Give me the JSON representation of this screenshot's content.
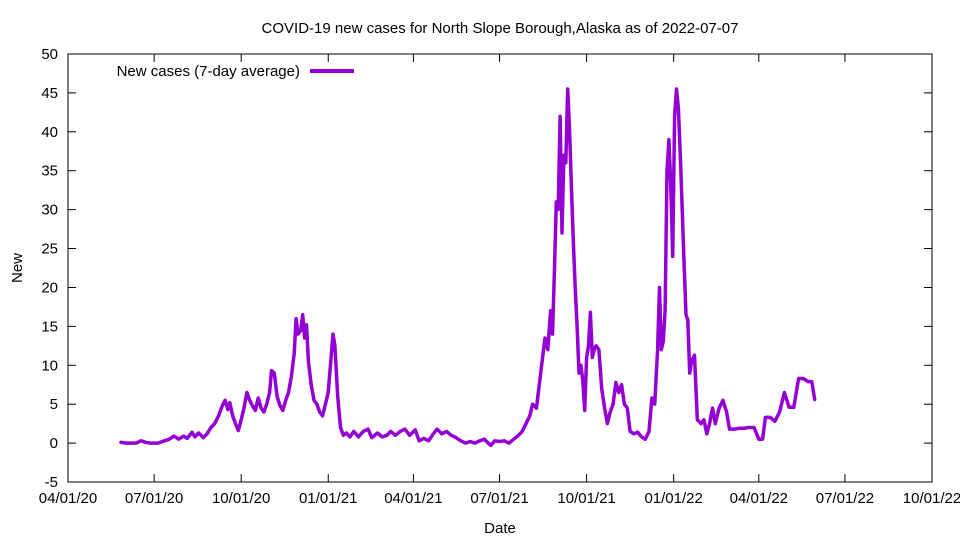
{
  "chart_data": {
    "type": "line",
    "title": "COVID-19 new cases for North Slope Borough,Alaska as of 2022-07-07",
    "xlabel": "Date",
    "ylabel": "New",
    "xlim": [
      "2020-04-01",
      "2022-10-01"
    ],
    "ylim": [
      -5,
      50
    ],
    "x_ticks": [
      "2020-04-01",
      "2020-07-01",
      "2020-10-01",
      "2021-01-01",
      "2021-04-01",
      "2021-07-01",
      "2021-10-01",
      "2022-01-01",
      "2022-04-01",
      "2022-07-01",
      "2022-10-01"
    ],
    "x_tick_labels": [
      "04/01/20",
      "07/01/20",
      "10/01/20",
      "01/01/21",
      "04/01/21",
      "07/01/21",
      "10/01/21",
      "01/01/22",
      "04/01/22",
      "07/01/22",
      "10/01/22"
    ],
    "y_ticks": [
      -5,
      0,
      5,
      10,
      15,
      20,
      25,
      30,
      35,
      40,
      45,
      50
    ],
    "grid": false,
    "legend_position": "top-left",
    "color": "#9400d3",
    "series": [
      {
        "name": "New cases (7-day average)",
        "points": [
          [
            "2020-05-27",
            0.1
          ],
          [
            "2020-06-02",
            0.0
          ],
          [
            "2020-06-12",
            0.0
          ],
          [
            "2020-06-17",
            0.3
          ],
          [
            "2020-06-22",
            0.1
          ],
          [
            "2020-06-27",
            0.0
          ],
          [
            "2020-07-05",
            0.0
          ],
          [
            "2020-07-12",
            0.3
          ],
          [
            "2020-07-17",
            0.5
          ],
          [
            "2020-07-22",
            0.9
          ],
          [
            "2020-07-27",
            0.5
          ],
          [
            "2020-08-01",
            0.9
          ],
          [
            "2020-08-05",
            0.6
          ],
          [
            "2020-08-10",
            1.4
          ],
          [
            "2020-08-13",
            0.8
          ],
          [
            "2020-08-17",
            1.3
          ],
          [
            "2020-08-22",
            0.7
          ],
          [
            "2020-08-26",
            1.2
          ],
          [
            "2020-08-30",
            2.0
          ],
          [
            "2020-09-03",
            2.5
          ],
          [
            "2020-09-07",
            3.5
          ],
          [
            "2020-09-11",
            4.8
          ],
          [
            "2020-09-14",
            5.5
          ],
          [
            "2020-09-17",
            4.3
          ],
          [
            "2020-09-19",
            5.2
          ],
          [
            "2020-09-22",
            3.5
          ],
          [
            "2020-09-25",
            2.5
          ],
          [
            "2020-09-28",
            1.6
          ],
          [
            "2020-10-01",
            3.0
          ],
          [
            "2020-10-04",
            4.5
          ],
          [
            "2020-10-07",
            6.5
          ],
          [
            "2020-10-10",
            5.5
          ],
          [
            "2020-10-13",
            4.8
          ],
          [
            "2020-10-16",
            4.2
          ],
          [
            "2020-10-19",
            5.8
          ],
          [
            "2020-10-22",
            4.5
          ],
          [
            "2020-10-25",
            4.0
          ],
          [
            "2020-10-28",
            5.0
          ],
          [
            "2020-10-31",
            6.5
          ],
          [
            "2020-11-02",
            9.3
          ],
          [
            "2020-11-05",
            9.0
          ],
          [
            "2020-11-08",
            6.0
          ],
          [
            "2020-11-11",
            4.8
          ],
          [
            "2020-11-14",
            4.2
          ],
          [
            "2020-11-17",
            5.5
          ],
          [
            "2020-11-20",
            6.5
          ],
          [
            "2020-11-23",
            8.5
          ],
          [
            "2020-11-26",
            11.5
          ],
          [
            "2020-11-28",
            16.0
          ],
          [
            "2020-11-30",
            14.0
          ],
          [
            "2020-12-03",
            14.5
          ],
          [
            "2020-12-05",
            16.5
          ],
          [
            "2020-12-07",
            13.5
          ],
          [
            "2020-12-09",
            15.2
          ],
          [
            "2020-12-11",
            10.5
          ],
          [
            "2020-12-14",
            7.5
          ],
          [
            "2020-12-17",
            5.5
          ],
          [
            "2020-12-20",
            5.0
          ],
          [
            "2020-12-23",
            4.0
          ],
          [
            "2020-12-26",
            3.5
          ],
          [
            "2020-12-29",
            5.0
          ],
          [
            "2021-01-01",
            6.5
          ],
          [
            "2021-01-04",
            11.0
          ],
          [
            "2021-01-06",
            14.0
          ],
          [
            "2021-01-08",
            12.5
          ],
          [
            "2021-01-11",
            6.0
          ],
          [
            "2021-01-14",
            2.0
          ],
          [
            "2021-01-17",
            1.0
          ],
          [
            "2021-01-20",
            1.3
          ],
          [
            "2021-01-24",
            0.8
          ],
          [
            "2021-01-28",
            1.5
          ],
          [
            "2021-02-02",
            0.8
          ],
          [
            "2021-02-07",
            1.5
          ],
          [
            "2021-02-12",
            1.8
          ],
          [
            "2021-02-16",
            0.7
          ],
          [
            "2021-02-22",
            1.3
          ],
          [
            "2021-02-27",
            0.8
          ],
          [
            "2021-03-04",
            1.0
          ],
          [
            "2021-03-08",
            1.5
          ],
          [
            "2021-03-13",
            1.0
          ],
          [
            "2021-03-18",
            1.5
          ],
          [
            "2021-03-23",
            1.8
          ],
          [
            "2021-03-28",
            1.0
          ],
          [
            "2021-04-03",
            1.7
          ],
          [
            "2021-04-07",
            0.3
          ],
          [
            "2021-04-12",
            0.6
          ],
          [
            "2021-04-17",
            0.3
          ],
          [
            "2021-04-22",
            1.2
          ],
          [
            "2021-04-26",
            1.8
          ],
          [
            "2021-05-01",
            1.2
          ],
          [
            "2021-05-06",
            1.5
          ],
          [
            "2021-05-11",
            1.0
          ],
          [
            "2021-05-16",
            0.7
          ],
          [
            "2021-05-21",
            0.3
          ],
          [
            "2021-05-26",
            0.0
          ],
          [
            "2021-05-31",
            0.2
          ],
          [
            "2021-06-05",
            0.0
          ],
          [
            "2021-06-10",
            0.3
          ],
          [
            "2021-06-15",
            0.5
          ],
          [
            "2021-06-19",
            0.0
          ],
          [
            "2021-06-22",
            -0.3
          ],
          [
            "2021-06-26",
            0.3
          ],
          [
            "2021-07-01",
            0.2
          ],
          [
            "2021-07-06",
            0.3
          ],
          [
            "2021-07-11",
            0.0
          ],
          [
            "2021-07-16",
            0.5
          ],
          [
            "2021-07-21",
            1.0
          ],
          [
            "2021-07-25",
            1.5
          ],
          [
            "2021-07-29",
            2.5
          ],
          [
            "2021-08-02",
            3.5
          ],
          [
            "2021-08-05",
            5.0
          ],
          [
            "2021-08-09",
            4.5
          ],
          [
            "2021-08-12",
            7.5
          ],
          [
            "2021-08-15",
            10.5
          ],
          [
            "2021-08-18",
            13.5
          ],
          [
            "2021-08-21",
            12.0
          ],
          [
            "2021-08-24",
            17.0
          ],
          [
            "2021-08-26",
            14.0
          ],
          [
            "2021-08-28",
            22.0
          ],
          [
            "2021-08-30",
            31.0
          ],
          [
            "2021-09-01",
            30.0
          ],
          [
            "2021-09-03",
            42.0
          ],
          [
            "2021-09-05",
            27.0
          ],
          [
            "2021-09-07",
            37.0
          ],
          [
            "2021-09-09",
            36.0
          ],
          [
            "2021-09-11",
            45.5
          ],
          [
            "2021-09-13",
            40.0
          ],
          [
            "2021-09-15",
            33.0
          ],
          [
            "2021-09-17",
            26.0
          ],
          [
            "2021-09-19",
            20.0
          ],
          [
            "2021-09-21",
            15.0
          ],
          [
            "2021-09-23",
            9.0
          ],
          [
            "2021-09-25",
            10.0
          ],
          [
            "2021-09-27",
            8.0
          ],
          [
            "2021-09-29",
            4.2
          ],
          [
            "2021-10-01",
            11.0
          ],
          [
            "2021-10-03",
            12.5
          ],
          [
            "2021-10-05",
            16.8
          ],
          [
            "2021-10-07",
            11.0
          ],
          [
            "2021-10-09",
            12.0
          ],
          [
            "2021-10-11",
            12.5
          ],
          [
            "2021-10-14",
            12.0
          ],
          [
            "2021-10-17",
            7.0
          ],
          [
            "2021-10-20",
            4.5
          ],
          [
            "2021-10-23",
            2.5
          ],
          [
            "2021-10-26",
            4.0
          ],
          [
            "2021-10-29",
            5.0
          ],
          [
            "2021-11-01",
            7.8
          ],
          [
            "2021-11-04",
            6.5
          ],
          [
            "2021-11-07",
            7.5
          ],
          [
            "2021-11-10",
            5.0
          ],
          [
            "2021-11-13",
            4.5
          ],
          [
            "2021-11-16",
            1.5
          ],
          [
            "2021-11-20",
            1.2
          ],
          [
            "2021-11-24",
            1.4
          ],
          [
            "2021-11-28",
            0.8
          ],
          [
            "2021-12-02",
            0.5
          ],
          [
            "2021-12-06",
            1.5
          ],
          [
            "2021-12-09",
            5.8
          ],
          [
            "2021-12-12",
            5.0
          ],
          [
            "2021-12-15",
            12.0
          ],
          [
            "2021-12-17",
            20.0
          ],
          [
            "2021-12-19",
            12.0
          ],
          [
            "2021-12-21",
            13.0
          ],
          [
            "2021-12-23",
            17.0
          ],
          [
            "2021-12-25",
            35.0
          ],
          [
            "2021-12-27",
            39.0
          ],
          [
            "2021-12-29",
            33.0
          ],
          [
            "2021-12-31",
            24.0
          ],
          [
            "2022-01-02",
            42.0
          ],
          [
            "2022-01-04",
            45.5
          ],
          [
            "2022-01-06",
            43.0
          ],
          [
            "2022-01-08",
            37.0
          ],
          [
            "2022-01-10",
            30.0
          ],
          [
            "2022-01-12",
            23.0
          ],
          [
            "2022-01-14",
            16.5
          ],
          [
            "2022-01-16",
            15.8
          ],
          [
            "2022-01-18",
            9.0
          ],
          [
            "2022-01-20",
            10.5
          ],
          [
            "2022-01-23",
            11.3
          ],
          [
            "2022-01-26",
            3.0
          ],
          [
            "2022-01-30",
            2.5
          ],
          [
            "2022-02-02",
            3.0
          ],
          [
            "2022-02-05",
            1.2
          ],
          [
            "2022-02-08",
            2.5
          ],
          [
            "2022-02-11",
            4.5
          ],
          [
            "2022-02-14",
            2.5
          ],
          [
            "2022-02-18",
            4.5
          ],
          [
            "2022-02-22",
            5.5
          ],
          [
            "2022-02-26",
            4.0
          ],
          [
            "2022-03-01",
            1.8
          ],
          [
            "2022-03-06",
            1.8
          ],
          [
            "2022-03-11",
            1.9
          ],
          [
            "2022-03-16",
            1.9
          ],
          [
            "2022-03-21",
            2.0
          ],
          [
            "2022-03-27",
            2.0
          ],
          [
            "2022-04-01",
            0.5
          ],
          [
            "2022-04-05",
            0.5
          ],
          [
            "2022-04-08",
            3.3
          ],
          [
            "2022-04-13",
            3.3
          ],
          [
            "2022-04-18",
            2.8
          ],
          [
            "2022-04-23",
            4.0
          ],
          [
            "2022-04-28",
            6.5
          ],
          [
            "2022-05-03",
            4.6
          ],
          [
            "2022-05-08",
            4.6
          ],
          [
            "2022-05-13",
            8.3
          ],
          [
            "2022-05-18",
            8.3
          ],
          [
            "2022-05-23",
            7.9
          ],
          [
            "2022-05-27",
            7.9
          ],
          [
            "2022-05-30",
            5.6
          ]
        ]
      }
    ]
  }
}
